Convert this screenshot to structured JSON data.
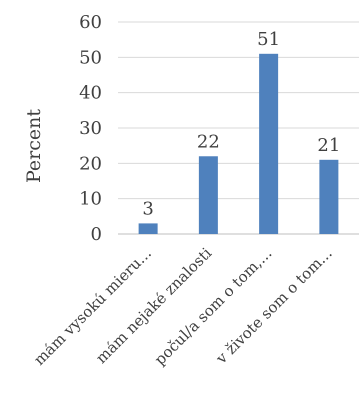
{
  "chart_data": {
    "type": "bar",
    "title": "",
    "xlabel": "",
    "ylabel": "Percent",
    "ylim": [
      0,
      60
    ],
    "yticks": [
      0,
      10,
      20,
      30,
      40,
      50,
      60
    ],
    "grid": true,
    "legend": "none",
    "categories": [
      "mám vysokú mieru...",
      "mám nejaké znalosti",
      "počul/a som o tom,...",
      "v živote som o tom..."
    ],
    "values": [
      3,
      22,
      51,
      21
    ],
    "data_labels": [
      "3",
      "22",
      "51",
      "21"
    ],
    "colors": {
      "bar": "#4f81bd",
      "gridline": "#d9d9d9",
      "axis_line": "#bfbfbf",
      "text": "#404040"
    }
  }
}
